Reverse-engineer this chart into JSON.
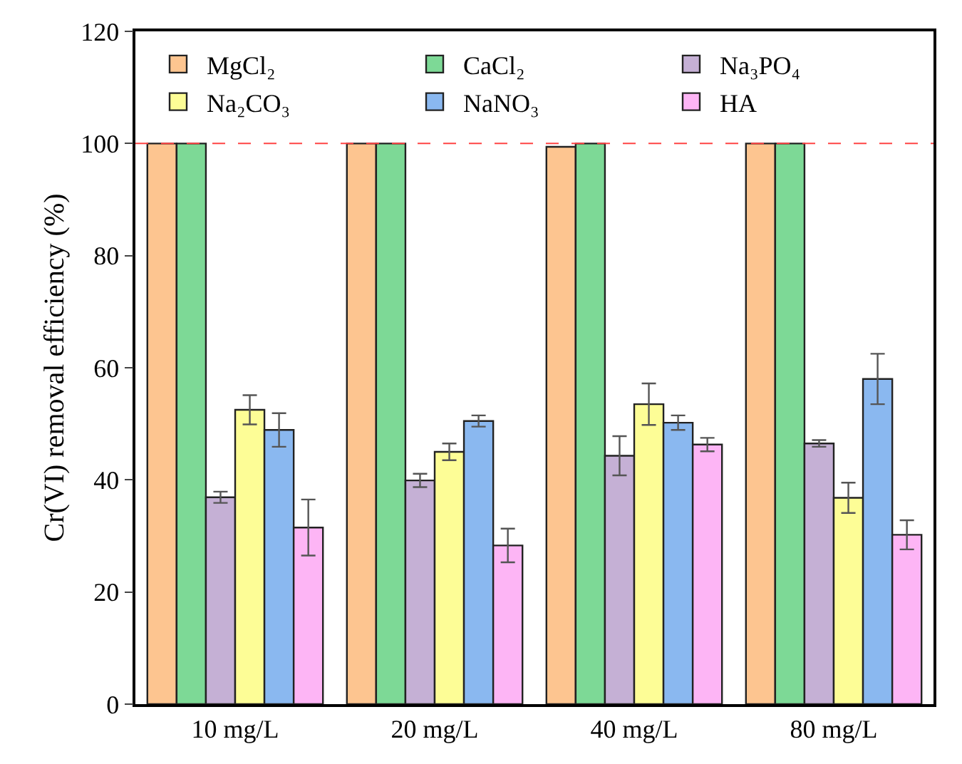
{
  "chart_data": {
    "type": "bar",
    "ylabel": "Cr(VI) removal efficiency (%)",
    "categories": [
      "10 mg/L",
      "20 mg/L",
      "40 mg/L",
      "80 mg/L"
    ],
    "series": [
      {
        "name": "MgCl₂",
        "color": "#fdc590",
        "values": [
          100,
          100,
          99.4,
          100
        ]
      },
      {
        "name": "CaCl₂",
        "color": "#7dd996",
        "values": [
          100,
          100,
          100,
          100
        ]
      },
      {
        "name": "Na₃PO₄",
        "color": "#c5b0d5",
        "values": [
          36.9,
          39.9,
          44.3,
          46.5
        ],
        "errors": [
          1,
          1.2,
          3.5,
          0.6
        ]
      },
      {
        "name": "Na₂CO₃",
        "color": "#fdfd96",
        "values": [
          52.5,
          45,
          53.5,
          36.8
        ],
        "errors": [
          2.6,
          1.5,
          3.7,
          2.7
        ]
      },
      {
        "name": "NaNO₃",
        "color": "#8ab8f0",
        "values": [
          48.9,
          50.5,
          50.2,
          58
        ],
        "errors": [
          3,
          1,
          1.3,
          4.5
        ]
      },
      {
        "name": "HA",
        "color": "#fdb5f5",
        "values": [
          31.5,
          28.3,
          46.3,
          30.2
        ],
        "errors": [
          5,
          3,
          1.2,
          2.6
        ]
      }
    ],
    "ylim": [
      0,
      120
    ],
    "yticks": [
      0,
      20,
      40,
      60,
      80,
      100,
      120
    ],
    "ref_lines": [
      {
        "axis": "y",
        "value": 100,
        "color": "#ff4444",
        "line_style": "dashed"
      }
    ],
    "grid": false,
    "legend": "top"
  }
}
